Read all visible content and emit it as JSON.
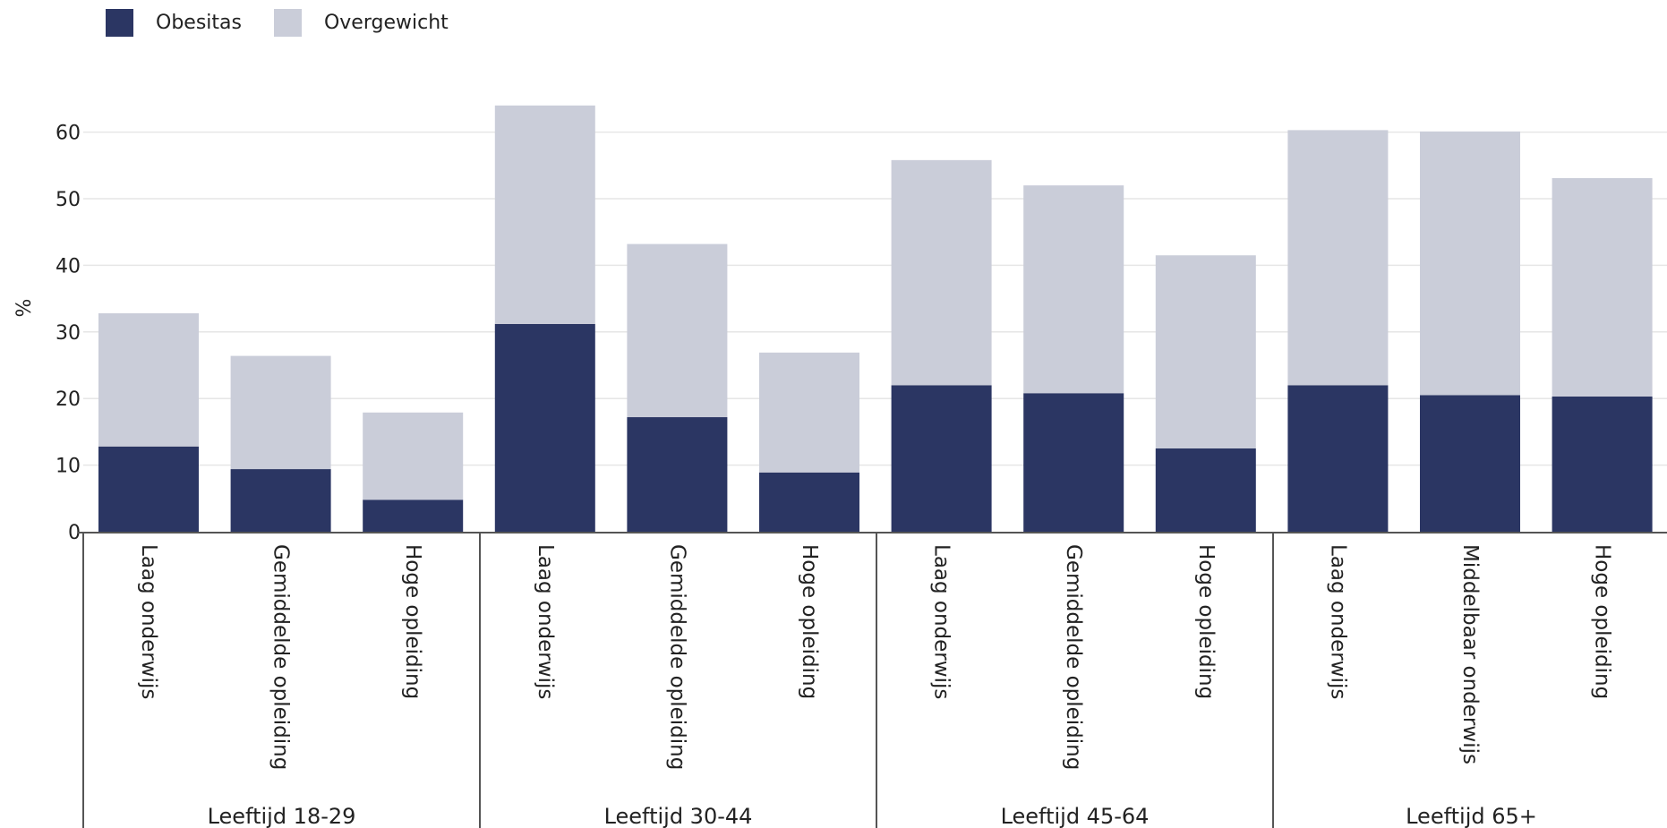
{
  "chart_data": {
    "type": "bar",
    "stacked": true,
    "ylabel": "%",
    "ylim": [
      0,
      65
    ],
    "yticks": [
      0,
      10,
      20,
      30,
      40,
      50,
      60
    ],
    "grid": true,
    "legend_position": "top-left",
    "groups": [
      {
        "label": "Leeftijd 18-29",
        "categories": [
          "Laag onderwijs",
          "Gemiddelde opleiding",
          "Hoge opleiding"
        ]
      },
      {
        "label": "Leeftijd 30-44",
        "categories": [
          "Laag onderwijs",
          "Gemiddelde opleiding",
          "Hoge opleiding"
        ]
      },
      {
        "label": "Leeftijd 45-64",
        "categories": [
          "Laag onderwijs",
          "Gemiddelde opleiding",
          "Hoge opleiding"
        ]
      },
      {
        "label": "Leeftijd 65+",
        "categories": [
          "Laag onderwijs",
          "Middelbaar onderwijs",
          "Hoge opleiding"
        ]
      }
    ],
    "series": [
      {
        "name": "Obesitas",
        "color": "#2b3663",
        "values": [
          12.8,
          9.4,
          4.8,
          31.2,
          17.2,
          8.9,
          22.0,
          20.8,
          12.5,
          22.0,
          20.5,
          20.3
        ]
      },
      {
        "name": "Overgewicht",
        "color": "#cacdd9",
        "values": [
          20.0,
          17.0,
          13.1,
          32.8,
          26.0,
          18.0,
          33.8,
          31.2,
          29.0,
          38.3,
          39.6,
          32.8
        ]
      }
    ]
  }
}
